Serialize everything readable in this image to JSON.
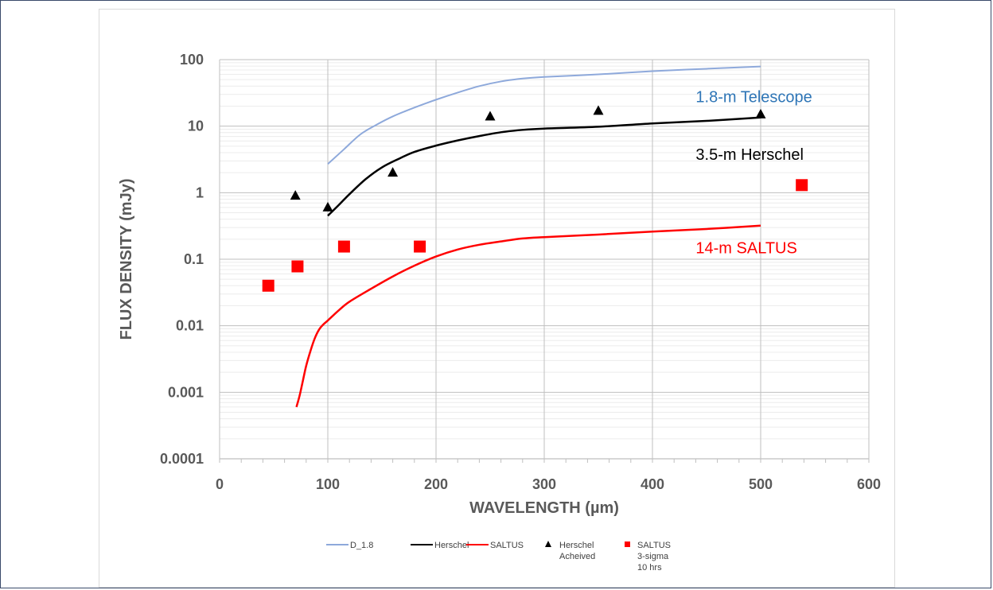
{
  "chart_data": {
    "type": "line",
    "title": "",
    "xlabel": "WAVELENGTH (µm)",
    "ylabel": "FLUX DENSITY (mJy)",
    "xlim": [
      0,
      600
    ],
    "ylim": [
      0.0001,
      100
    ],
    "y_scale": "log",
    "grid": true,
    "legend_position": "bottom",
    "x_tick_labels": [
      "0",
      "100",
      "200",
      "300",
      "400",
      "500",
      "600"
    ],
    "y_tick_labels": [
      "100",
      "10",
      "1",
      "0.1",
      "0.01",
      "0.001",
      "0.0001"
    ],
    "series": [
      {
        "name": "D_1.8",
        "kind": "line",
        "color": "#8ea9db",
        "x": [
          100,
          115,
          130,
          145,
          160,
          180,
          200,
          220,
          240,
          260,
          280,
          300,
          350,
          400,
          450,
          500
        ],
        "y": [
          2.7,
          4.5,
          7.5,
          10.5,
          14,
          19,
          25,
          32,
          40,
          47,
          52,
          55,
          60,
          67,
          73,
          79
        ]
      },
      {
        "name": "Herschel",
        "kind": "line",
        "color": "#000000",
        "x": [
          100,
          110,
          120,
          135,
          150,
          165,
          180,
          200,
          220,
          240,
          260,
          280,
          300,
          350,
          400,
          450,
          500
        ],
        "y": [
          0.45,
          0.65,
          0.95,
          1.6,
          2.4,
          3.2,
          4.1,
          5.1,
          6.1,
          7.1,
          8.1,
          8.8,
          9.2,
          9.8,
          11,
          12,
          13.5
        ]
      },
      {
        "name": "SALTUS",
        "kind": "line",
        "color": "#ff0000",
        "x": [
          71,
          74,
          77,
          80,
          84,
          88,
          92,
          96,
          100,
          110,
          120,
          140,
          160,
          180,
          200,
          220,
          240,
          260,
          280,
          300,
          350,
          400,
          450,
          500
        ],
        "y": [
          0.0006,
          0.0009,
          0.0015,
          0.0025,
          0.0042,
          0.0065,
          0.0088,
          0.0105,
          0.012,
          0.017,
          0.023,
          0.036,
          0.055,
          0.08,
          0.11,
          0.14,
          0.165,
          0.185,
          0.205,
          0.215,
          0.235,
          0.26,
          0.285,
          0.32
        ]
      },
      {
        "name": "Herschel Acheived",
        "kind": "scatter",
        "marker": "triangle",
        "color": "#000000",
        "x": [
          70,
          100,
          160,
          250,
          350,
          500
        ],
        "y": [
          0.9,
          0.6,
          2.0,
          14,
          17,
          15
        ]
      },
      {
        "name": "SALTUS 3-sigma 10 hrs",
        "kind": "scatter",
        "marker": "square",
        "color": "#ff0000",
        "x": [
          45,
          72,
          115,
          185,
          538
        ],
        "y": [
          0.04,
          0.078,
          0.155,
          0.155,
          1.3
        ]
      }
    ],
    "annotations": [
      {
        "text": "1.8-m  Telescope",
        "x": 440,
        "y": 28,
        "color": "#2e75b6"
      },
      {
        "text": "3.5-m  Herschel",
        "x": 440,
        "y": 3.8,
        "color": "#000000"
      },
      {
        "text": "14-m  SALTUS",
        "x": 440,
        "y": 0.15,
        "color": "#ff0000"
      }
    ],
    "legend": [
      {
        "lines": [
          "D_1.8"
        ],
        "symbol": "line",
        "color": "#8ea9db"
      },
      {
        "lines": [
          "Herschel"
        ],
        "symbol": "line",
        "color": "#000000"
      },
      {
        "lines": [
          "SALTUS"
        ],
        "symbol": "line",
        "color": "#ff0000"
      },
      {
        "lines": [
          "Herschel",
          "Acheived"
        ],
        "symbol": "triangle",
        "color": "#000000"
      },
      {
        "lines": [
          "SALTUS",
          "3-sigma",
          "10 hrs"
        ],
        "symbol": "square",
        "color": "#ff0000"
      }
    ]
  }
}
